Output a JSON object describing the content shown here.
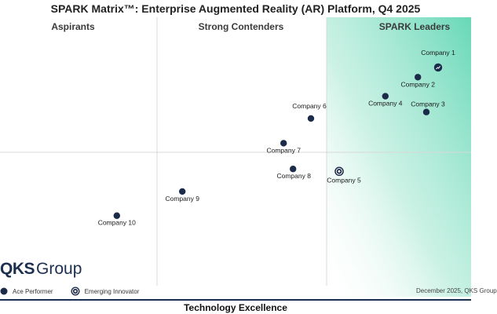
{
  "chart_data": {
    "type": "scatter",
    "title": "SPARK Matrix™: Enterprise Augmented Reality (AR) Platform, Q4 2025",
    "xlabel": "Technology Excellence",
    "ylabel": "",
    "xlim": [
      0,
      100
    ],
    "ylim": [
      0,
      100
    ],
    "quadrant_labels": [
      "Aspirants",
      "Strong Contenders",
      "SPARK Leaders"
    ],
    "points": [
      {
        "label": "Company 1",
        "x": 93.0,
        "y": 81.3,
        "category": "Ace Performer"
      },
      {
        "label": "Company 2",
        "x": 88.7,
        "y": 77.7,
        "category": ""
      },
      {
        "label": "Company 3",
        "x": 90.5,
        "y": 64.7,
        "category": ""
      },
      {
        "label": "Company 4",
        "x": 81.8,
        "y": 70.6,
        "category": ""
      },
      {
        "label": "Company 5",
        "x": 72.0,
        "y": 42.6,
        "category": "Emerging Innovator"
      },
      {
        "label": "Company 6",
        "x": 66.0,
        "y": 62.3,
        "category": ""
      },
      {
        "label": "Company 7",
        "x": 60.2,
        "y": 53.1,
        "category": ""
      },
      {
        "label": "Company 8",
        "x": 62.2,
        "y": 43.5,
        "category": ""
      },
      {
        "label": "Company 9",
        "x": 38.7,
        "y": 35.1,
        "category": ""
      },
      {
        "label": "Company 10",
        "x": 24.8,
        "y": 26.1,
        "category": ""
      }
    ]
  },
  "logo": {
    "qks": "QKS",
    "group": "Group"
  },
  "legend": {
    "ace_performer": "Ace Performer",
    "emerging_innovator": "Emerging Innovator"
  },
  "footnote": "December 2025, QKS Group",
  "colors": {
    "leader_gradient": "#5fd6b3",
    "point_fill": "#1c2b4a",
    "grid": "#d8d8d8"
  }
}
